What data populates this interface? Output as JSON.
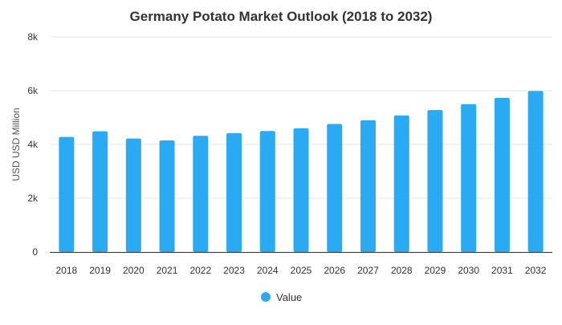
{
  "chart_data": {
    "type": "bar",
    "title": "Germany Potato Market Outlook (2018 to 2032)",
    "xlabel": "",
    "ylabel": "USD USD Million",
    "categories": [
      "2018",
      "2019",
      "2020",
      "2021",
      "2022",
      "2023",
      "2024",
      "2025",
      "2026",
      "2027",
      "2028",
      "2029",
      "2030",
      "2031",
      "2032"
    ],
    "series": [
      {
        "name": "Value",
        "color": "#2aaaf2",
        "values": [
          4280,
          4490,
          4220,
          4150,
          4320,
          4420,
          4500,
          4600,
          4760,
          4900,
          5080,
          5280,
          5500,
          5730,
          5990
        ]
      }
    ],
    "ylim": [
      0,
      8000
    ],
    "yticks": [
      {
        "value": 0,
        "label": "0"
      },
      {
        "value": 2000,
        "label": "2k"
      },
      {
        "value": 4000,
        "label": "4k"
      },
      {
        "value": 6000,
        "label": "6k"
      },
      {
        "value": 8000,
        "label": "8k"
      }
    ],
    "grid": true,
    "legend_position": "bottom-center",
    "colors": {
      "bar": "#2aaaf2",
      "grid": "#e6e6e6",
      "axis": "#333333",
      "text": "#333333",
      "title": "#333333"
    }
  }
}
